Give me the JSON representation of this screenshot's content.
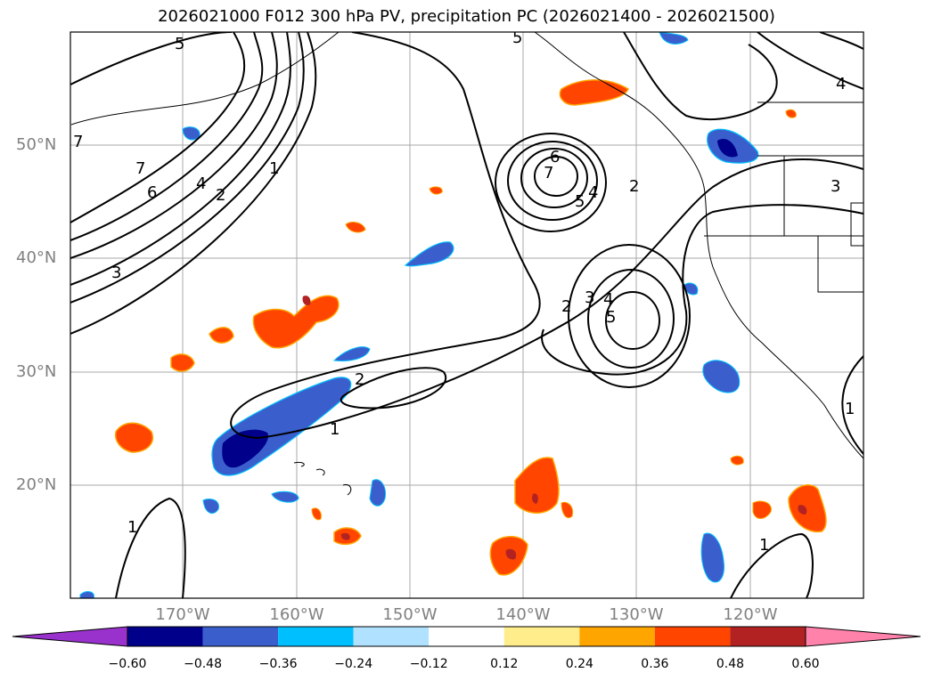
{
  "title": "2026021000 F012 300 hPa PV, precipitation PC (2026021400 - 2026021500)",
  "lat_labels": [
    "50°N",
    "40°N",
    "30°N",
    "20°N"
  ],
  "lon_labels": [
    "170°W",
    "160°W",
    "150°W",
    "140°W",
    "130°W",
    "120°W"
  ],
  "contour_labels": [
    "5",
    "7",
    "7",
    "6",
    "4",
    "2",
    "1",
    "3",
    "5",
    "6",
    "7",
    "5",
    "4",
    "2",
    "3",
    "4",
    "2",
    "3",
    "4",
    "5",
    "2",
    "1",
    "1",
    "1",
    "1"
  ],
  "colorbar": {
    "ticks": [
      "−0.60",
      "−0.48",
      "−0.36",
      "−0.24",
      "−0.12",
      "0.12",
      "0.24",
      "0.36",
      "0.48",
      "0.60"
    ],
    "colors": [
      "#9932cc",
      "#00008b",
      "#3a5fcd",
      "#00bfff",
      "#b0e2ff",
      "#ffffff",
      "#ffec8b",
      "#ffa500",
      "#ff4500",
      "#b22222",
      "#ff82ab"
    ]
  },
  "colors": {
    "contour": "#000000",
    "grid": "#a9a9a9",
    "coast": "#000000"
  }
}
